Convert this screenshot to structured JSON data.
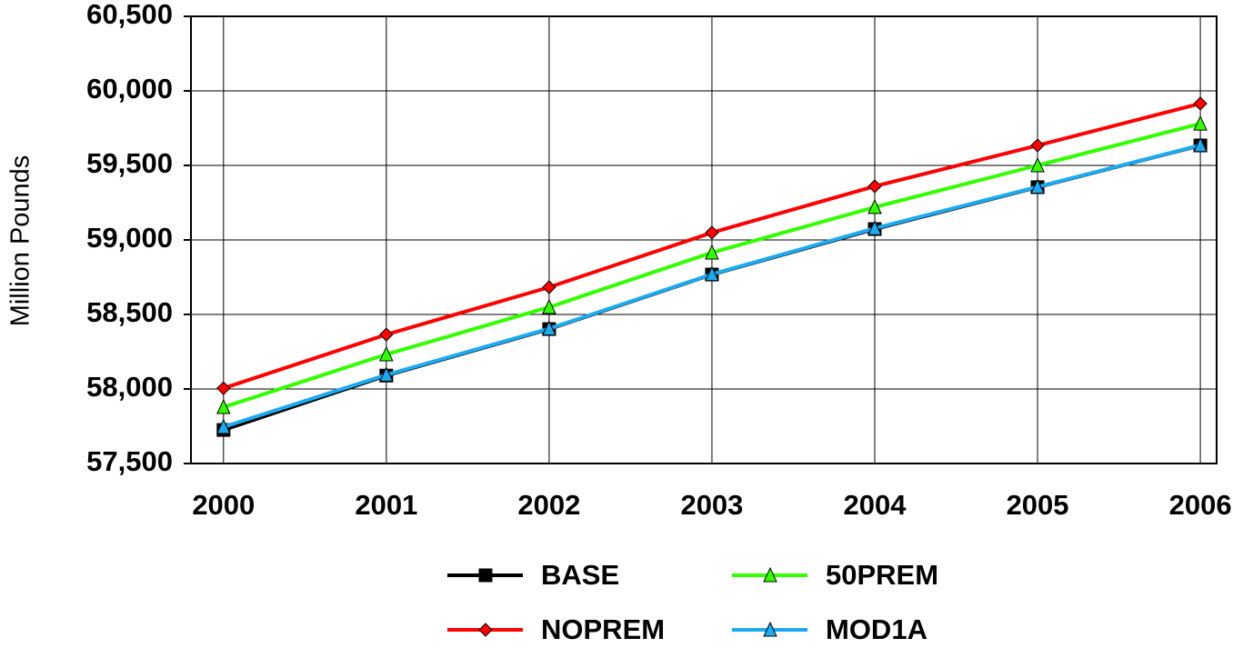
{
  "chart_data": {
    "type": "line",
    "y_label": "Million Pounds",
    "x": [
      2000,
      2001,
      2002,
      2003,
      2004,
      2005,
      2006
    ],
    "xlim": [
      1999.8,
      2006.1
    ],
    "xticks": [
      2000,
      2001,
      2002,
      2003,
      2004,
      2005,
      2006
    ],
    "ylim": [
      57500,
      60500
    ],
    "yticks": [
      {
        "value": 57500,
        "label": "57,500"
      },
      {
        "value": 58000,
        "label": "58,000"
      },
      {
        "value": 58500,
        "label": "58,500"
      },
      {
        "value": 59000,
        "label": "59,000"
      },
      {
        "value": 59500,
        "label": "59,500"
      },
      {
        "value": 60000,
        "label": "60,000"
      },
      {
        "value": 60500,
        "label": "60,500"
      }
    ],
    "grid": true,
    "legend": "bottom",
    "series": [
      {
        "name": "BASE",
        "color": "#000000",
        "marker": "square",
        "values": [
          57725,
          58090,
          58402,
          58768,
          59073,
          59354,
          59634
        ]
      },
      {
        "name": "NOPREM",
        "color": "#ff0000",
        "marker": "diamond",
        "values": [
          58005,
          58365,
          58683,
          59049,
          59360,
          59634,
          59915
        ]
      },
      {
        "name": "50PREM",
        "color": "#33ff00",
        "marker": "triangle",
        "values": [
          57878,
          58232,
          58549,
          58915,
          59220,
          59500,
          59780
        ]
      },
      {
        "name": "MOD1A",
        "color": "#1eaaf1",
        "marker": "triangle",
        "values": [
          57745,
          58095,
          58405,
          58770,
          59078,
          59356,
          59636
        ]
      }
    ]
  }
}
